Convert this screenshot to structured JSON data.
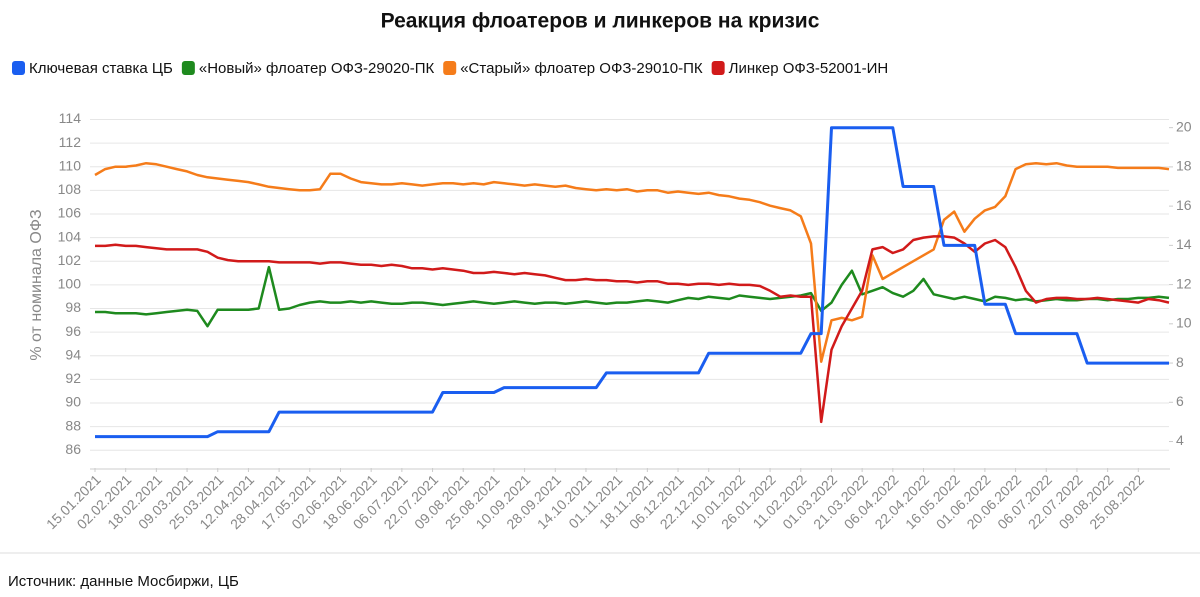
{
  "chart_data": {
    "type": "line",
    "title": "Реакция флоатеров и линкеров на кризис",
    "ylabel": "% от номинала ОФЗ",
    "source": "Источник: данные Мосбиржи, ЦБ",
    "categories": [
      "15.01.2021",
      null,
      null,
      "02.02.2021",
      null,
      null,
      "18.02.2021",
      null,
      null,
      "09.03.2021",
      null,
      null,
      "25.03.2021",
      null,
      null,
      "12.04.2021",
      null,
      null,
      "28.04.2021",
      null,
      null,
      "17.05.2021",
      null,
      null,
      "02.06.2021",
      null,
      null,
      "18.06.2021",
      null,
      null,
      "06.07.2021",
      null,
      null,
      "22.07.2021",
      null,
      null,
      "09.08.2021",
      null,
      null,
      "25.08.2021",
      null,
      null,
      "10.09.2021",
      null,
      null,
      "28.09.2021",
      null,
      null,
      "14.10.2021",
      null,
      null,
      "01.11.2021",
      null,
      null,
      "18.11.2021",
      null,
      null,
      "06.12.2021",
      null,
      null,
      "22.12.2021",
      null,
      null,
      "10.01.2022",
      null,
      null,
      "26.01.2022",
      null,
      null,
      "11.02.2022",
      null,
      null,
      "01.03.2022",
      null,
      null,
      "21.03.2022",
      null,
      null,
      "06.04.2022",
      null,
      null,
      "22.04.2022",
      null,
      null,
      "16.05.2022",
      null,
      null,
      "01.06.2022",
      null,
      null,
      "20.06.2022",
      null,
      null,
      "06.07.2022",
      null,
      null,
      "22.07.2022",
      null,
      null,
      "09.08.2022",
      null,
      null,
      "25.08.2022",
      null,
      null,
      null
    ],
    "series": [
      {
        "name": "Ключевая ставка ЦБ",
        "color": "#1a5ef0",
        "axis": "y2",
        "values": [
          4.25,
          4.25,
          4.25,
          4.25,
          4.25,
          4.25,
          4.25,
          4.25,
          4.25,
          4.25,
          4.25,
          4.25,
          4.5,
          4.5,
          4.5,
          4.5,
          4.5,
          4.5,
          5.5,
          5.5,
          5.5,
          5.5,
          5.5,
          5.5,
          5.5,
          5.5,
          5.5,
          5.5,
          5.5,
          5.5,
          5.5,
          5.5,
          5.5,
          5.5,
          6.5,
          6.5,
          6.5,
          6.5,
          6.5,
          6.5,
          6.75,
          6.75,
          6.75,
          6.75,
          6.75,
          6.75,
          6.75,
          6.75,
          6.75,
          6.75,
          7.5,
          7.5,
          7.5,
          7.5,
          7.5,
          7.5,
          7.5,
          7.5,
          7.5,
          7.5,
          8.5,
          8.5,
          8.5,
          8.5,
          8.5,
          8.5,
          8.5,
          8.5,
          8.5,
          8.5,
          9.5,
          9.5,
          20,
          20,
          20,
          20,
          20,
          20,
          20,
          17,
          17,
          17,
          17,
          14,
          14,
          14,
          14,
          11,
          11,
          11,
          9.5,
          9.5,
          9.5,
          9.5,
          9.5,
          9.5,
          9.5,
          8,
          8,
          8,
          8,
          8,
          8,
          8,
          8,
          8
        ]
      },
      {
        "name": "«Новый» флоатер ОФЗ-29020-ПК",
        "color": "#1e8a1e",
        "values": [
          97.7,
          97.7,
          97.6,
          97.6,
          97.6,
          97.5,
          97.6,
          97.7,
          97.8,
          97.9,
          97.8,
          96.5,
          97.9,
          97.9,
          97.9,
          97.9,
          98.0,
          101.5,
          97.9,
          98.0,
          98.3,
          98.5,
          98.6,
          98.5,
          98.5,
          98.6,
          98.5,
          98.6,
          98.5,
          98.4,
          98.4,
          98.5,
          98.5,
          98.4,
          98.3,
          98.4,
          98.5,
          98.6,
          98.5,
          98.4,
          98.5,
          98.6,
          98.5,
          98.4,
          98.5,
          98.5,
          98.4,
          98.5,
          98.6,
          98.5,
          98.4,
          98.5,
          98.5,
          98.6,
          98.7,
          98.6,
          98.5,
          98.7,
          98.9,
          98.8,
          99.0,
          98.9,
          98.8,
          99.1,
          99.0,
          98.9,
          98.8,
          98.9,
          99.0,
          99.1,
          99.3,
          97.8,
          98.5,
          100.0,
          101.2,
          99.2,
          99.5,
          99.8,
          99.3,
          99.0,
          99.5,
          100.5,
          99.2,
          99.0,
          98.8,
          99.0,
          98.8,
          98.6,
          99.0,
          98.9,
          98.7,
          98.8,
          98.6,
          98.7,
          98.8,
          98.7,
          98.7,
          98.8,
          98.8,
          98.7,
          98.8,
          98.8,
          98.9,
          98.9,
          99.0,
          98.9
        ]
      },
      {
        "name": "«Старый» флоатер ОФЗ-29010-ПК",
        "color": "#f57c1a",
        "values": [
          109.3,
          109.8,
          110.0,
          110.0,
          110.1,
          110.3,
          110.2,
          110.0,
          109.8,
          109.6,
          109.3,
          109.1,
          109.0,
          108.9,
          108.8,
          108.7,
          108.5,
          108.3,
          108.2,
          108.1,
          108.0,
          108.0,
          108.1,
          109.4,
          109.4,
          109.0,
          108.7,
          108.6,
          108.5,
          108.5,
          108.6,
          108.5,
          108.4,
          108.5,
          108.6,
          108.6,
          108.5,
          108.6,
          108.5,
          108.7,
          108.6,
          108.5,
          108.4,
          108.5,
          108.4,
          108.3,
          108.4,
          108.2,
          108.1,
          108.0,
          108.1,
          108.0,
          108.1,
          107.9,
          108.0,
          108.0,
          107.8,
          107.9,
          107.8,
          107.7,
          107.8,
          107.6,
          107.5,
          107.3,
          107.2,
          107.0,
          106.7,
          106.5,
          106.3,
          105.8,
          103.5,
          93.5,
          97.0,
          97.2,
          97.0,
          97.3,
          102.5,
          100.5,
          101.0,
          101.5,
          102.0,
          102.5,
          103.0,
          105.5,
          106.2,
          104.5,
          105.6,
          106.3,
          106.6,
          107.5,
          109.8,
          110.2,
          110.3,
          110.2,
          110.3,
          110.1,
          110.0,
          110.0,
          110.0,
          110.0,
          109.9,
          109.9,
          109.9,
          109.9,
          109.9,
          109.8
        ]
      },
      {
        "name": "Линкер ОФЗ-52001-ИН",
        "color": "#d11a1a",
        "values": [
          103.3,
          103.3,
          103.4,
          103.3,
          103.3,
          103.2,
          103.1,
          103.0,
          103.0,
          103.0,
          103.0,
          102.8,
          102.3,
          102.1,
          102.0,
          102.0,
          102.0,
          102.0,
          101.9,
          101.9,
          101.9,
          101.9,
          101.8,
          101.9,
          101.9,
          101.8,
          101.7,
          101.7,
          101.6,
          101.7,
          101.6,
          101.4,
          101.4,
          101.3,
          101.4,
          101.3,
          101.2,
          101.0,
          101.0,
          101.1,
          101.0,
          100.9,
          101.0,
          100.9,
          100.8,
          100.6,
          100.4,
          100.4,
          100.5,
          100.4,
          100.4,
          100.3,
          100.3,
          100.2,
          100.3,
          100.3,
          100.1,
          100.1,
          100.0,
          100.1,
          100.1,
          100.0,
          100.1,
          100.0,
          100.0,
          99.9,
          99.5,
          99.0,
          99.1,
          99.0,
          99.0,
          88.4,
          94.5,
          96.5,
          98.0,
          99.5,
          103.0,
          103.2,
          102.7,
          103.0,
          103.8,
          104.0,
          104.1,
          104.1,
          104.0,
          103.5,
          102.8,
          103.5,
          103.8,
          103.2,
          101.5,
          99.5,
          98.5,
          98.8,
          98.9,
          98.9,
          98.8,
          98.8,
          98.9,
          98.8,
          98.7,
          98.6,
          98.5,
          98.8,
          98.7,
          98.5
        ]
      }
    ],
    "ylim": [
      84.5,
      114.8
    ],
    "yticks": [
      86,
      88,
      90,
      92,
      94,
      96,
      98,
      100,
      102,
      104,
      106,
      108,
      110,
      112,
      114
    ],
    "y2lim": [
      2.65,
      20.9
    ],
    "y2ticks": [
      4,
      6,
      8,
      10,
      12,
      14,
      16,
      18,
      20
    ],
    "grid": true
  }
}
